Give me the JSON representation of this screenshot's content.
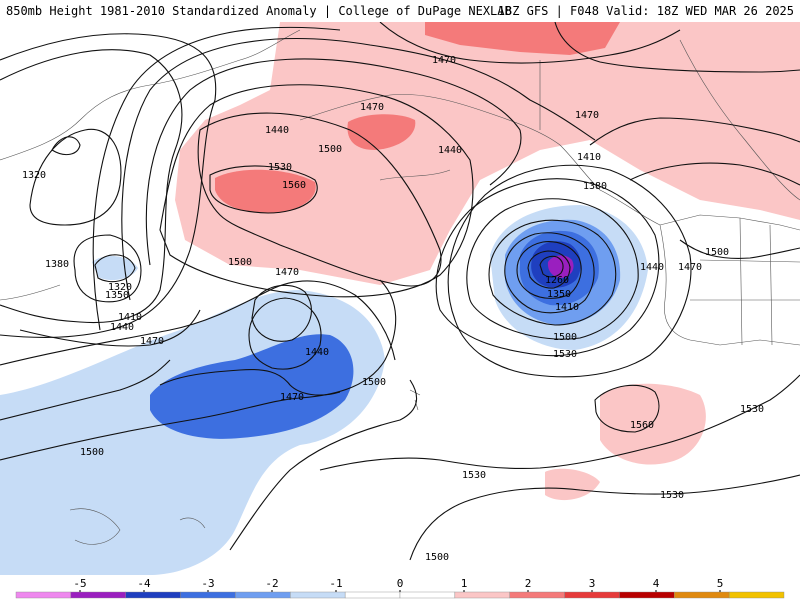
{
  "title_left": "850mb Height 1981-2010 Standardized Anomaly | College of DuPage NEXLAB",
  "title_right": "18Z GFS | F048 Valid: 18Z WED MAR 26 2025",
  "colorbar": {
    "ticks": [
      "-5",
      "-4",
      "-3",
      "-2",
      "-1",
      "0",
      "1",
      "2",
      "3",
      "4",
      "5"
    ],
    "colors": [
      "#ee88ee",
      "#9a1fbf",
      "#1f3fbf",
      "#3d6fe0",
      "#6f9ef0",
      "#c6dcf6",
      "#ffffff",
      "#ffffff",
      "#fbc6c6",
      "#f47a7a",
      "#e63b3b",
      "#b80000",
      "#e08a10",
      "#f2c200"
    ]
  },
  "contour_labels": [
    {
      "text": "1470"
    },
    {
      "text": "1470"
    },
    {
      "text": "1470"
    },
    {
      "text": "1470"
    },
    {
      "text": "1470"
    },
    {
      "text": "1470"
    },
    {
      "text": "1470"
    },
    {
      "text": "1440"
    },
    {
      "text": "1440"
    },
    {
      "text": "1440"
    },
    {
      "text": "1440"
    },
    {
      "text": "1440"
    },
    {
      "text": "1500"
    },
    {
      "text": "1500"
    },
    {
      "text": "1500"
    },
    {
      "text": "1500"
    },
    {
      "text": "1500"
    },
    {
      "text": "1500"
    },
    {
      "text": "1500"
    },
    {
      "text": "1530"
    },
    {
      "text": "1530"
    },
    {
      "text": "1530"
    },
    {
      "text": "1530"
    },
    {
      "text": "1530"
    },
    {
      "text": "1560"
    },
    {
      "text": "1560"
    },
    {
      "text": "1410"
    },
    {
      "text": "1410"
    },
    {
      "text": "1410"
    },
    {
      "text": "1380"
    },
    {
      "text": "1380"
    },
    {
      "text": "1320"
    },
    {
      "text": "1320"
    },
    {
      "text": "1350"
    },
    {
      "text": "1350"
    },
    {
      "text": "1260"
    }
  ]
}
